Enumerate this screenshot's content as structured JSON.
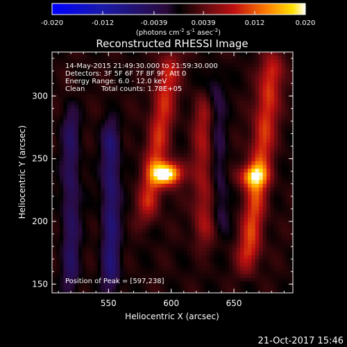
{
  "chart_data": {
    "type": "heatmap",
    "title": "Reconstructed RHESSI Image",
    "xlabel": "Heliocentric X (arcsec)",
    "ylabel": "Heliocentric Y (arcsec)",
    "xlim": [
      505,
      697
    ],
    "ylim": [
      143,
      335
    ],
    "xticks": [
      550,
      600,
      650
    ],
    "yticks": [
      150,
      200,
      250,
      300
    ],
    "colorbar": {
      "min": -0.02,
      "max": 0.02,
      "ticks": [
        "-0.020",
        "-0.012",
        "-0.0039",
        "0.0039",
        "0.012",
        "0.020"
      ],
      "tick_values": [
        -0.02,
        -0.012,
        -0.0039,
        0.0039,
        0.012,
        0.02
      ],
      "unit_main": "(photons cm",
      "unit_exp1": "-2",
      "unit_mid": " s",
      "unit_exp2": "-1",
      "unit_mid2": " asec",
      "unit_exp3": "-2",
      "unit_end": ")"
    },
    "annotations": {
      "time_range": "14-May-2015 21:49:30.000 to 21:59:30.000",
      "detectors": "Detectors: 3F 5F 6F 7F 8F 9F, Att 0",
      "energy": "Energy Range: 6.0 - 12.0 keV",
      "method": "Clean",
      "counts": "Total counts: 1.78E+05",
      "peak": "Position of Peak = [597,238]"
    },
    "sources": [
      {
        "x": 597,
        "y": 238,
        "peak": 0.02
      },
      {
        "x": 665,
        "y": 236,
        "peak": 0.0125
      }
    ],
    "ridges": [
      {
        "x_top": 600,
        "x_bottom": 580,
        "y_top": 335,
        "y_bottom": 200,
        "level": 0.0085
      },
      {
        "x_top": 682,
        "x_bottom": 660,
        "y_top": 335,
        "y_bottom": 160,
        "level": 0.0095
      },
      {
        "x_top": 626,
        "x_bottom": 626,
        "y_top": 300,
        "y_bottom": 180,
        "level": 0.006
      }
    ],
    "troughs": [
      {
        "x_top": 520,
        "x_bottom": 520,
        "y_top": 290,
        "y_bottom": 143,
        "level": -0.006
      },
      {
        "x_top": 552,
        "x_bottom": 552,
        "y_top": 280,
        "y_bottom": 143,
        "level": -0.008
      },
      {
        "x_top": 635,
        "x_bottom": 640,
        "y_top": 320,
        "y_bottom": 190,
        "level": -0.004
      }
    ]
  },
  "footer": {
    "timestamp": "21-Oct-2017 15:46"
  }
}
